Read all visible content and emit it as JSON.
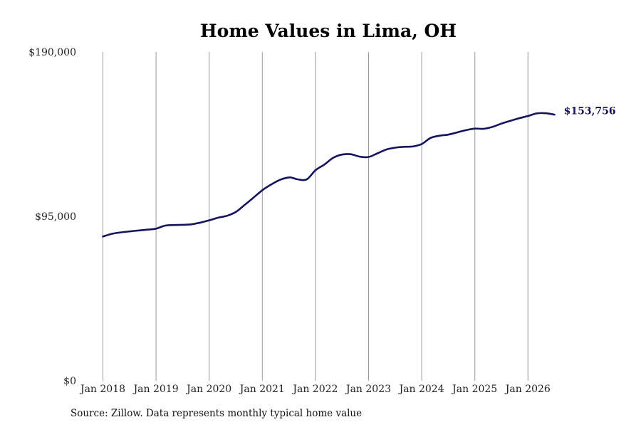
{
  "chart_data": {
    "type": "line",
    "title": "Home Values in Lima, OH",
    "xlabel": "",
    "ylabel": "",
    "y_tick_values": [
      0,
      95000,
      190000
    ],
    "y_tick_labels": [
      "$0",
      "$95,000",
      "$190,000"
    ],
    "ylim": [
      0,
      190000
    ],
    "x_tick_labels": [
      "Jan 2018",
      "Jan 2019",
      "Jan 2020",
      "Jan 2021",
      "Jan 2022",
      "Jan 2023",
      "Jan 2024",
      "Jan 2025",
      "Jan 2026"
    ],
    "x_tick_values": [
      "2018-01",
      "2019-01",
      "2020-01",
      "2021-01",
      "2022-01",
      "2023-01",
      "2024-01",
      "2025-01",
      "2026-01"
    ],
    "xlim": [
      "2018-01",
      "2026-07"
    ],
    "grid": "vertical",
    "line_color": "#14145e",
    "end_label": "$153,756",
    "series": [
      {
        "name": "",
        "x": [
          "2018-01",
          "2018-03",
          "2018-05",
          "2018-07",
          "2018-09",
          "2018-11",
          "2019-01",
          "2019-03",
          "2019-05",
          "2019-07",
          "2019-09",
          "2019-11",
          "2020-01",
          "2020-03",
          "2020-05",
          "2020-07",
          "2020-09",
          "2020-11",
          "2021-01",
          "2021-03",
          "2021-05",
          "2021-07",
          "2021-08",
          "2021-09",
          "2021-11",
          "2022-01",
          "2022-03",
          "2022-05",
          "2022-07",
          "2022-09",
          "2022-11",
          "2023-01",
          "2023-03",
          "2023-05",
          "2023-07",
          "2023-09",
          "2023-11",
          "2024-01",
          "2024-03",
          "2024-05",
          "2024-07",
          "2024-09",
          "2024-11",
          "2025-01",
          "2025-03",
          "2025-05",
          "2025-07",
          "2025-09",
          "2025-11",
          "2026-01",
          "2026-03",
          "2026-05",
          "2026-07"
        ],
        "values": [
          83300,
          84900,
          85700,
          86300,
          86800,
          87300,
          87900,
          89600,
          90000,
          90100,
          90400,
          91400,
          92700,
          94200,
          95300,
          97500,
          101600,
          105800,
          110100,
          113400,
          116100,
          117500,
          117100,
          116400,
          116300,
          121600,
          124900,
          128800,
          130700,
          130900,
          129500,
          129300,
          131400,
          133600,
          134700,
          135200,
          135400,
          136800,
          140300,
          141600,
          142200,
          143500,
          144800,
          145700,
          145600,
          146700,
          148600,
          150200,
          151700,
          153000,
          154500,
          154600,
          153756
        ]
      }
    ]
  },
  "source_text": "Source: Zillow. Data represents monthly typical home value"
}
